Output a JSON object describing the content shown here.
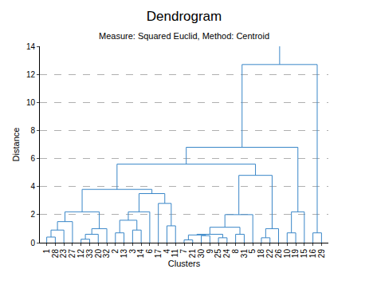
{
  "chart_data": {
    "type": "dendrogram",
    "title": "Dendrogram",
    "subtitle": "Measure: Squared Euclid, Method: Centroid",
    "x_label": "Clusters",
    "y_label": "Distance",
    "categories": [
      "1",
      "28",
      "23",
      "27",
      "12",
      "33",
      "20",
      "32",
      "2",
      "13",
      "3",
      "14",
      "6",
      "17",
      "4",
      "11",
      "7",
      "21",
      "30",
      "9",
      "25",
      "24",
      "8",
      "31",
      "5",
      "18",
      "22",
      "26",
      "10",
      "19",
      "15",
      "16",
      "29"
    ],
    "tree": {
      "height": 12.7,
      "children": [
        {
          "height": 6.8,
          "children": [
            {
              "height": 5.6,
              "children": [
                {
                  "height": 3.8,
                  "children": [
                    {
                      "height": 2.2,
                      "children": [
                        {
                          "height": 1.5,
                          "children": [
                            {
                              "height": 0.9,
                              "children": [
                                {
                                  "height": 0.4,
                                  "children": [
                                    "1",
                                    "28"
                                  ]
                                },
                                "23"
                              ]
                            },
                            "27"
                          ]
                        },
                        {
                          "height": 1.0,
                          "children": [
                            {
                              "height": 0.6,
                              "children": [
                                {
                                  "height": 0.25,
                                  "children": [
                                    "12",
                                    "33"
                                  ]
                                },
                                "20"
                              ]
                            },
                            "32"
                          ]
                        }
                      ]
                    },
                    {
                      "height": 3.5,
                      "children": [
                        {
                          "height": 2.2,
                          "children": [
                            {
                              "height": 1.6,
                              "children": [
                                {
                                  "height": 0.7,
                                  "children": [
                                    "2",
                                    "13"
                                  ]
                                },
                                {
                                  "height": 0.9,
                                  "children": [
                                    "3",
                                    "14"
                                  ]
                                }
                              ]
                            },
                            "6"
                          ]
                        },
                        {
                          "height": 2.8,
                          "children": [
                            "17",
                            {
                              "height": 1.2,
                              "children": [
                                "4",
                                "11"
                              ]
                            }
                          ]
                        }
                      ]
                    }
                  ]
                },
                {
                  "height": 4.8,
                  "children": [
                    {
                      "height": 2.0,
                      "children": [
                        {
                          "height": 1.1,
                          "children": [
                            {
                              "height": 0.6,
                              "children": [
                                {
                                  "height": 0.55,
                                  "children": [
                                    {
                                      "height": 0.2,
                                      "children": [
                                        "7",
                                        "21"
                                      ]
                                    },
                                    {
                                      "height": 0.5,
                                      "children": [
                                        "30",
                                        "9"
                                      ]
                                    }
                                  ]
                                },
                                {
                                  "height": 0.35,
                                  "children": [
                                    "25",
                                    "24"
                                  ]
                                }
                              ]
                            },
                            {
                              "height": 0.6,
                              "children": [
                                "8",
                                "31"
                              ]
                            }
                          ]
                        },
                        "5"
                      ]
                    },
                    {
                      "height": 1.0,
                      "children": [
                        {
                          "height": 0.35,
                          "children": [
                            "18",
                            "22"
                          ]
                        },
                        "26"
                      ]
                    }
                  ]
                }
              ]
            },
            {
              "height": 2.2,
              "children": [
                {
                  "height": 0.7,
                  "children": [
                    "10",
                    "19"
                  ]
                },
                "15"
              ]
            }
          ]
        },
        {
          "height": 0.7,
          "children": [
            "16",
            "29"
          ]
        }
      ]
    },
    "color": "#3a87c8",
    "ylim": [
      0,
      14
    ],
    "yticks": [
      0,
      2,
      4,
      6,
      8,
      10,
      12,
      14
    ],
    "grid": true
  }
}
